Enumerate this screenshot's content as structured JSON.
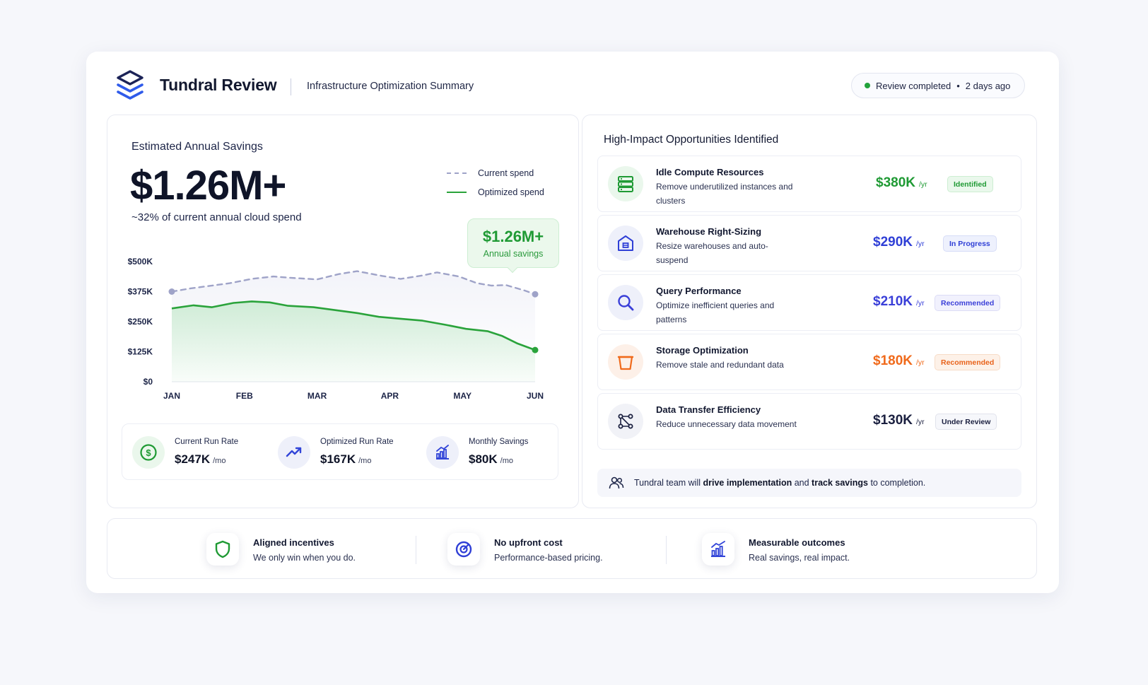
{
  "header": {
    "brand": "Tundral Review",
    "subtitle": "Infrastructure Optimization Summary",
    "status": "Review completed",
    "status_time": "2 days ago",
    "status_color": "#22a23c"
  },
  "savings": {
    "label": "Estimated Annual Savings",
    "value": "$1.26M+",
    "subtext": "~32% of current annual cloud spend",
    "callout_value": "$1.26M+",
    "callout_label": "Annual savings"
  },
  "chart_data": {
    "type": "line",
    "x": [
      "JAN",
      "FEB",
      "MAR",
      "APR",
      "MAY",
      "JUN"
    ],
    "x_numeric": [
      0,
      0.5,
      1,
      1.5,
      2,
      2.5,
      3,
      3.5,
      4,
      4.5,
      5
    ],
    "ylim": [
      0,
      500
    ],
    "yticks": [
      "$0",
      "$125K",
      "$250K",
      "$375K",
      "$500K"
    ],
    "ytick_values": [
      0,
      125,
      250,
      375,
      500
    ],
    "series": [
      {
        "name": "Current spend",
        "style": "dashed",
        "color": "#9fa3c8",
        "points": [
          [
            0,
            375
          ],
          [
            0.25,
            388
          ],
          [
            0.5,
            398
          ],
          [
            0.8,
            410
          ],
          [
            1.1,
            428
          ],
          [
            1.4,
            438
          ],
          [
            1.65,
            432
          ],
          [
            2,
            426
          ],
          [
            2.3,
            448
          ],
          [
            2.55,
            460
          ],
          [
            2.9,
            440
          ],
          [
            3.15,
            428
          ],
          [
            3.45,
            442
          ],
          [
            3.65,
            455
          ],
          [
            3.95,
            438
          ],
          [
            4.2,
            410
          ],
          [
            4.4,
            400
          ],
          [
            4.6,
            402
          ],
          [
            4.85,
            380
          ],
          [
            5,
            364
          ]
        ]
      },
      {
        "name": "Optimized spend",
        "style": "solid",
        "color": "#2aa33b",
        "points": [
          [
            0,
            305
          ],
          [
            0.3,
            318
          ],
          [
            0.55,
            310
          ],
          [
            0.85,
            328
          ],
          [
            1.1,
            334
          ],
          [
            1.35,
            330
          ],
          [
            1.6,
            316
          ],
          [
            1.95,
            310
          ],
          [
            2.25,
            298
          ],
          [
            2.55,
            286
          ],
          [
            2.85,
            270
          ],
          [
            3.15,
            262
          ],
          [
            3.45,
            254
          ],
          [
            3.75,
            238
          ],
          [
            4.05,
            220
          ],
          [
            4.35,
            210
          ],
          [
            4.55,
            190
          ],
          [
            4.75,
            160
          ],
          [
            5,
            132
          ]
        ]
      }
    ]
  },
  "metrics": [
    {
      "label": "Current Run Rate",
      "value": "$247K",
      "unit": "/mo",
      "icon": "dollar-circle-icon"
    },
    {
      "label": "Optimized Run Rate",
      "value": "$167K",
      "unit": "/mo",
      "icon": "trend-up-icon"
    },
    {
      "label": "Monthly Savings",
      "value": "$80K",
      "unit": "/mo",
      "icon": "bar-growth-icon"
    }
  ],
  "opportunities": {
    "title": "High-Impact Opportunities Identified",
    "items": [
      {
        "title": "Idle Compute Resources",
        "desc": "Remove underutilized instances and clusters",
        "value": "$380K",
        "unit": "/yr",
        "badge": "Identified",
        "color": "#1f9a34",
        "icon": "server-icon"
      },
      {
        "title": "Warehouse Right-Sizing",
        "desc": "Resize warehouses and auto-suspend",
        "value": "$290K",
        "unit": "/yr",
        "badge": "In Progress",
        "color": "#2f3fd6",
        "icon": "warehouse-icon"
      },
      {
        "title": "Query Performance",
        "desc": "Optimize inefficient queries and patterns",
        "value": "$210K",
        "unit": "/yr",
        "badge": "Recommended",
        "color": "#3a3fd8",
        "icon": "search-icon"
      },
      {
        "title": "Storage Optimization",
        "desc": "Remove stale and redundant data",
        "value": "$180K",
        "unit": "/yr",
        "badge": "Recommended",
        "color": "#f06a1b",
        "icon": "bucket-icon"
      },
      {
        "title": "Data Transfer Efficiency",
        "desc": "Reduce unnecessary data movement",
        "value": "$130K",
        "unit": "/yr",
        "badge": "Under Review",
        "color": "#1b2040",
        "icon": "network-icon"
      }
    ],
    "note_pre": "Tundral team will ",
    "note_b1": "drive implementation",
    "note_mid": " and ",
    "note_b2": "track savings",
    "note_post": " to completion."
  },
  "features": [
    {
      "title": "Aligned incentives",
      "desc": "We only win when you do.",
      "icon": "shield-icon"
    },
    {
      "title": "No upfront cost",
      "desc": "Performance-based pricing.",
      "icon": "target-icon"
    },
    {
      "title": "Measurable outcomes",
      "desc": "Real savings, real impact.",
      "icon": "bar-growth-icon"
    }
  ]
}
